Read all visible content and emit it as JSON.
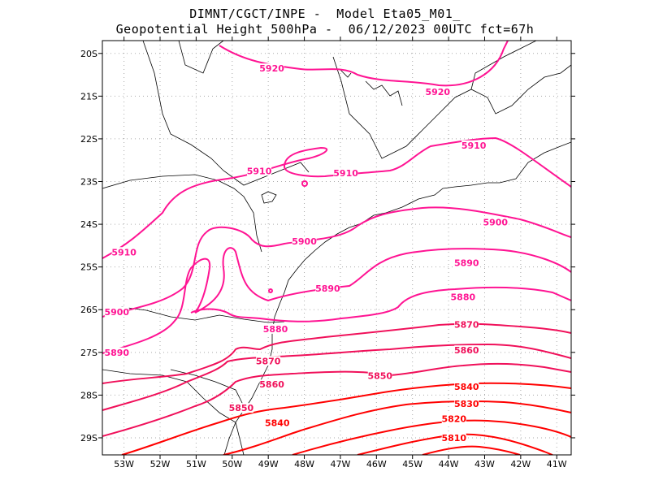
{
  "header": {
    "line1": "DIMNT/CGCT/INPE -  Model Eta05_M01_",
    "line2": "Geopotential Height 500hPa -  06/12/2023 00UTC fct=67h"
  },
  "axes": {
    "lon_labels": [
      "53W",
      "52W",
      "51W",
      "50W",
      "49W",
      "48W",
      "47W",
      "46W",
      "45W",
      "44W",
      "43W",
      "42W",
      "41W"
    ],
    "lat_labels": [
      "20S",
      "21S",
      "22S",
      "23S",
      "24S",
      "25S",
      "26S",
      "27S",
      "28S",
      "29S"
    ]
  },
  "colors": {
    "contour_pink": "#ff1493",
    "contour_red": "#ff0000",
    "coast": "#000000",
    "grid": "#aaaaaa"
  },
  "chart_data": {
    "type": "contour-map",
    "variable": "Geopotential Height 500hPa",
    "lon_range": [
      -53.6,
      -40.6
    ],
    "lat_range": [
      -29.4,
      -19.7
    ],
    "contour_levels": [
      5810,
      5820,
      5830,
      5840,
      5850,
      5860,
      5870,
      5880,
      5890,
      5900,
      5910,
      5920
    ],
    "labels": [
      {
        "text": "5920",
        "lon": -48.9,
        "lat": -20.35
      },
      {
        "text": "5920",
        "lon": -44.3,
        "lat": -20.9
      },
      {
        "text": "5910",
        "lon": -43.3,
        "lat": -22.15
      },
      {
        "text": "5910",
        "lon": -49.25,
        "lat": -22.75
      },
      {
        "text": "5910",
        "lon": -46.85,
        "lat": -22.8
      },
      {
        "text": "5910",
        "lon": -53.0,
        "lat": -24.65
      },
      {
        "text": "5900",
        "lon": -48.0,
        "lat": -24.4
      },
      {
        "text": "5900",
        "lon": -42.7,
        "lat": -23.95
      },
      {
        "text": "5900",
        "lon": -53.2,
        "lat": -26.05
      },
      {
        "text": "5890",
        "lon": -47.35,
        "lat": -25.5
      },
      {
        "text": "5890",
        "lon": -43.5,
        "lat": -24.9
      },
      {
        "text": "5890",
        "lon": -53.2,
        "lat": -27.0
      },
      {
        "text": "5880",
        "lon": -43.6,
        "lat": -25.7
      },
      {
        "text": "5880",
        "lon": -48.8,
        "lat": -26.45
      },
      {
        "text": "5870",
        "lon": -43.5,
        "lat": -26.35
      },
      {
        "text": "5870",
        "lon": -49.0,
        "lat": -27.2
      },
      {
        "text": "5860",
        "lon": -43.5,
        "lat": -26.95
      },
      {
        "text": "5860",
        "lon": -48.9,
        "lat": -27.75
      },
      {
        "text": "5850",
        "lon": -45.9,
        "lat": -27.55
      },
      {
        "text": "5850",
        "lon": -49.75,
        "lat": -28.3
      },
      {
        "text": "5840",
        "lon": -43.5,
        "lat": -27.8
      },
      {
        "text": "5840",
        "lon": -48.75,
        "lat": -28.65
      },
      {
        "text": "5830",
        "lon": -43.5,
        "lat": -28.2
      },
      {
        "text": "5820",
        "lon": -43.85,
        "lat": -28.55
      },
      {
        "text": "5810",
        "lon": -43.85,
        "lat": -29.0
      }
    ]
  }
}
